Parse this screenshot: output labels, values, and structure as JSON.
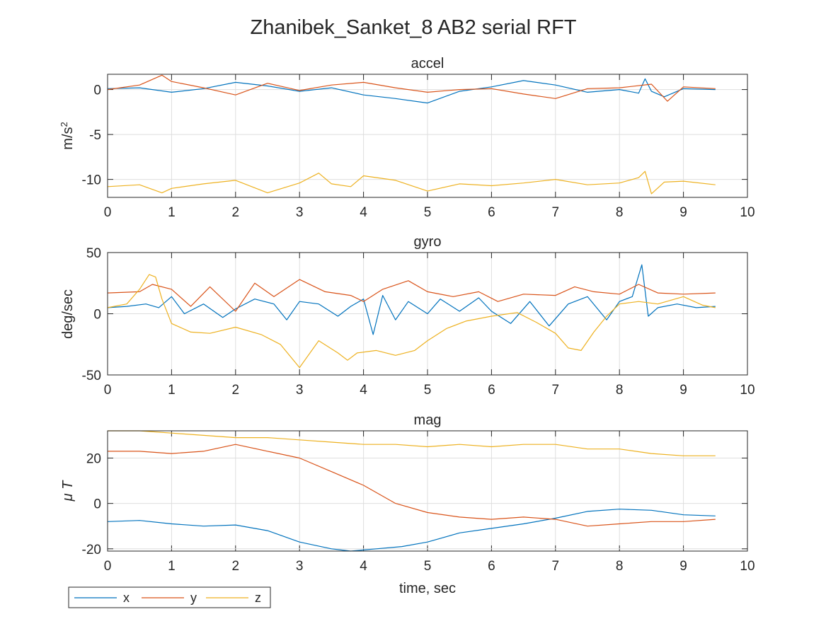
{
  "figure_title": "Zhanibek_Sanket_8 AB2 serial RFT",
  "colors": {
    "x": "#0072BD",
    "y": "#D95319",
    "z": "#EDB120"
  },
  "chart_data": [
    {
      "type": "line",
      "title": "accel",
      "ylabel": "m/s",
      "ylabel_superscript": "2",
      "xlim": [
        0,
        10
      ],
      "ylim": [
        -12,
        1.7
      ],
      "xticks": [
        "0",
        "1",
        "2",
        "3",
        "4",
        "5",
        "6",
        "7",
        "8",
        "9",
        "10"
      ],
      "yticks": [
        {
          "v": 0,
          "label": "0"
        },
        {
          "v": -5,
          "label": "-5"
        },
        {
          "v": -10,
          "label": "-10"
        }
      ],
      "grid": true,
      "series": [
        {
          "key": "x",
          "name": "x",
          "x": [
            0,
            0.5,
            1,
            1.5,
            2,
            2.5,
            3,
            3.5,
            4,
            4.5,
            5,
            5.5,
            6,
            6.5,
            7,
            7.5,
            8,
            8.3,
            8.4,
            8.5,
            8.7,
            9,
            9.5
          ],
          "y": [
            0.1,
            0.2,
            -0.3,
            0.1,
            0.8,
            0.4,
            -0.2,
            0.2,
            -0.6,
            -1.0,
            -1.5,
            -0.2,
            0.3,
            1.0,
            0.5,
            -0.3,
            0,
            -0.4,
            1.2,
            -0.2,
            -0.8,
            0.1,
            0
          ]
        },
        {
          "key": "y",
          "name": "y",
          "x": [
            0,
            0.5,
            0.85,
            1,
            1.5,
            2,
            2.5,
            3,
            3.5,
            4,
            4.5,
            5,
            5.5,
            6,
            6.5,
            7,
            7.5,
            8,
            8.5,
            8.75,
            9,
            9.5
          ],
          "y": [
            0,
            0.5,
            1.6,
            0.9,
            0.2,
            -0.6,
            0.7,
            -0.1,
            0.5,
            0.8,
            0.2,
            -0.3,
            0,
            0.1,
            -0.5,
            -1.0,
            0.1,
            0.2,
            0.6,
            -1.3,
            0.3,
            0.1
          ]
        },
        {
          "key": "z",
          "name": "z",
          "x": [
            0,
            0.5,
            0.85,
            1,
            1.5,
            2,
            2.5,
            3,
            3.3,
            3.5,
            3.8,
            4,
            4.5,
            5,
            5.5,
            6,
            6.5,
            7,
            7.5,
            8,
            8.3,
            8.4,
            8.5,
            8.7,
            9,
            9.5
          ],
          "y": [
            -10.8,
            -10.6,
            -11.5,
            -11.0,
            -10.5,
            -10.1,
            -11.5,
            -10.4,
            -9.3,
            -10.5,
            -10.8,
            -9.6,
            -10.1,
            -11.3,
            -10.5,
            -10.7,
            -10.4,
            -10.0,
            -10.6,
            -10.4,
            -9.8,
            -9.1,
            -11.6,
            -10.3,
            -10.2,
            -10.6
          ]
        }
      ]
    },
    {
      "type": "line",
      "title": "gyro",
      "ylabel": "deg/sec",
      "xlim": [
        0,
        10
      ],
      "ylim": [
        -50,
        50
      ],
      "xticks": [
        "0",
        "1",
        "2",
        "3",
        "4",
        "5",
        "6",
        "7",
        "8",
        "9",
        "10"
      ],
      "yticks": [
        {
          "v": 50,
          "label": "50"
        },
        {
          "v": 0,
          "label": "0"
        },
        {
          "v": -50,
          "label": "-50"
        }
      ],
      "grid": true,
      "series": [
        {
          "key": "x",
          "name": "x",
          "x": [
            0,
            0.3,
            0.6,
            0.8,
            1,
            1.2,
            1.5,
            1.8,
            2,
            2.3,
            2.6,
            2.8,
            3,
            3.3,
            3.6,
            3.8,
            4,
            4.15,
            4.3,
            4.5,
            4.7,
            5,
            5.2,
            5.5,
            5.8,
            6,
            6.3,
            6.6,
            6.9,
            7.2,
            7.5,
            7.8,
            8,
            8.2,
            8.35,
            8.45,
            8.6,
            8.9,
            9.2,
            9.5
          ],
          "y": [
            5,
            6,
            8,
            5,
            14,
            0,
            8,
            -3,
            4,
            12,
            8,
            -5,
            10,
            8,
            -2,
            6,
            12,
            -17,
            15,
            -5,
            10,
            0,
            12,
            2,
            13,
            2,
            -8,
            10,
            -10,
            8,
            14,
            -5,
            10,
            14,
            40,
            -2,
            5,
            8,
            5,
            6
          ]
        },
        {
          "key": "y",
          "name": "y",
          "x": [
            0,
            0.5,
            0.7,
            1,
            1.3,
            1.6,
            2,
            2.3,
            2.6,
            3,
            3.4,
            3.8,
            4,
            4.3,
            4.7,
            5,
            5.4,
            5.8,
            6.1,
            6.5,
            7,
            7.3,
            7.6,
            8,
            8.3,
            8.6,
            9,
            9.5
          ],
          "y": [
            17,
            18,
            24,
            20,
            6,
            22,
            2,
            25,
            14,
            28,
            18,
            15,
            10,
            20,
            27,
            18,
            14,
            18,
            10,
            16,
            15,
            22,
            18,
            16,
            24,
            17,
            16,
            17
          ]
        },
        {
          "key": "z",
          "name": "z",
          "x": [
            0,
            0.3,
            0.5,
            0.65,
            0.75,
            0.85,
            1,
            1.3,
            1.6,
            2,
            2.4,
            2.7,
            3,
            3.3,
            3.6,
            3.75,
            3.9,
            4.2,
            4.5,
            4.8,
            5,
            5.3,
            5.6,
            6,
            6.4,
            6.7,
            7,
            7.2,
            7.4,
            7.6,
            7.8,
            8,
            8.3,
            8.6,
            9,
            9.3,
            9.5
          ],
          "y": [
            5,
            8,
            20,
            32,
            30,
            12,
            -8,
            -15,
            -16,
            -11,
            -17,
            -25,
            -44,
            -22,
            -32,
            -38,
            -32,
            -30,
            -34,
            -30,
            -22,
            -12,
            -6,
            -2,
            1,
            -7,
            -16,
            -28,
            -30,
            -15,
            -2,
            8,
            10,
            8,
            14,
            7,
            5
          ]
        }
      ]
    },
    {
      "type": "line",
      "title": "mag",
      "ylabel": "μ T",
      "xlim": [
        0,
        10
      ],
      "ylim": [
        -21,
        32
      ],
      "xticks": [
        "0",
        "1",
        "2",
        "3",
        "4",
        "5",
        "6",
        "7",
        "8",
        "9",
        "10"
      ],
      "yticks": [
        {
          "v": 20,
          "label": "20"
        },
        {
          "v": 0,
          "label": "0"
        },
        {
          "v": -20,
          "label": "-20"
        }
      ],
      "grid": true,
      "series": [
        {
          "key": "x",
          "name": "x",
          "x": [
            0,
            0.5,
            1,
            1.5,
            2,
            2.5,
            3,
            3.5,
            3.8,
            4.2,
            4.6,
            5,
            5.5,
            6,
            6.5,
            7,
            7.5,
            8,
            8.5,
            9,
            9.5
          ],
          "y": [
            -8,
            -7.5,
            -9,
            -10,
            -9.5,
            -12,
            -17,
            -20,
            -21,
            -20,
            -19,
            -17,
            -13,
            -11,
            -9,
            -6.5,
            -3.5,
            -2.5,
            -3,
            -5,
            -5.5
          ]
        },
        {
          "key": "y",
          "name": "y",
          "x": [
            0,
            0.5,
            1,
            1.5,
            2,
            2.5,
            3,
            3.5,
            4,
            4.5,
            5,
            5.5,
            6,
            6.5,
            7,
            7.5,
            8,
            8.5,
            9,
            9.5
          ],
          "y": [
            23,
            23,
            22,
            23,
            26,
            23,
            20,
            14,
            8,
            0,
            -4,
            -6,
            -7,
            -6,
            -7,
            -10,
            -9,
            -8,
            -8,
            -7
          ]
        },
        {
          "key": "z",
          "name": "z",
          "x": [
            0,
            0.5,
            1,
            1.5,
            2,
            2.5,
            3,
            3.5,
            4,
            4.5,
            5,
            5.5,
            6,
            6.5,
            7,
            7.5,
            8,
            8.5,
            9,
            9.5
          ],
          "y": [
            32,
            32,
            31,
            30,
            29,
            29,
            28,
            27,
            26,
            26,
            25,
            26,
            25,
            26,
            26,
            24,
            24,
            22,
            21,
            21
          ]
        }
      ]
    }
  ],
  "xlabel": "time, sec",
  "legend": {
    "placement": "bottom-left",
    "entries": [
      {
        "key": "x",
        "label": "x"
      },
      {
        "key": "y",
        "label": "y"
      },
      {
        "key": "z",
        "label": "z"
      }
    ]
  }
}
